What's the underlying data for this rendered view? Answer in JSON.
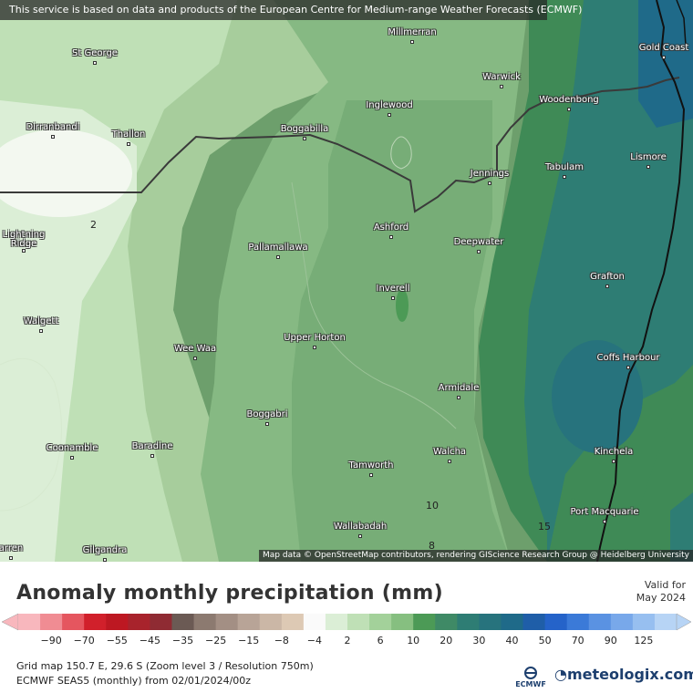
{
  "banner": "This service is based on data and products of the European Centre for Medium-range Weather Forecasts (ECMWF)",
  "attribution": "Map data © OpenStreetMap contributors, rendering GIScience Research Group @ Heidelberg University",
  "cities": [
    {
      "name": "Millmerran"
    },
    {
      "name": "St George"
    },
    {
      "name": "Warwick"
    },
    {
      "name": "Gold Coast"
    },
    {
      "name": "Inglewood"
    },
    {
      "name": "Woodenbong"
    },
    {
      "name": "Dirranbandi"
    },
    {
      "name": "Thallon"
    },
    {
      "name": "Boggabilla"
    },
    {
      "name": "Jennings"
    },
    {
      "name": "Tabulam"
    },
    {
      "name": "Lismore"
    },
    {
      "name": "Lightning Ridge"
    },
    {
      "name": "Ashford"
    },
    {
      "name": "Deepwater"
    },
    {
      "name": "Pallamallawa"
    },
    {
      "name": "Grafton"
    },
    {
      "name": "Inverell"
    },
    {
      "name": "Walgett"
    },
    {
      "name": "Wee Waa"
    },
    {
      "name": "Upper Horton"
    },
    {
      "name": "Coffs Harbour"
    },
    {
      "name": "Armidale"
    },
    {
      "name": "Boggabri"
    },
    {
      "name": "Coonamble"
    },
    {
      "name": "Baradine"
    },
    {
      "name": "Walcha"
    },
    {
      "name": "Kinchela"
    },
    {
      "name": "Tamworth"
    },
    {
      "name": "Port Macquarie"
    },
    {
      "name": "Wallabadah"
    },
    {
      "name": "arren"
    },
    {
      "name": "Gilgandra"
    }
  ],
  "contour_labels": [
    "2",
    "10",
    "15",
    "8"
  ],
  "legend": {
    "title": "Anomaly monthly precipitation (mm)",
    "valid_line1": "Valid for",
    "valid_line2": "May 2024",
    "ticks": [
      "−90",
      "−70",
      "−55",
      "−45",
      "−35",
      "−25",
      "−15",
      "−8",
      "−4",
      "2",
      "6",
      "10",
      "20",
      "30",
      "40",
      "50",
      "70",
      "90",
      "125"
    ],
    "colors": [
      "#f8b7bd",
      "#f08c93",
      "#e5565f",
      "#d1202b",
      "#bd1822",
      "#a8232c",
      "#8f2b33",
      "#6b5a54",
      "#8c7a70",
      "#a38f84",
      "#b8a497",
      "#cbb7a6",
      "#ddc9b4",
      "#fafafa",
      "#dbeed6",
      "#bfe0b6",
      "#a3d19a",
      "#86bf80",
      "#4c9a56",
      "#3f8a66",
      "#2e7d74",
      "#27737d",
      "#1f6a89",
      "#1f5ea8",
      "#2563c9",
      "#3b7ad8",
      "#5a92e2",
      "#78a8ea",
      "#97bff0",
      "#b7d4f5"
    ],
    "grid_info": "Grid map 150.7 E, 29.6 S (Zoom level 3 / Resolution 750m)",
    "model_info": "ECMWF SEAS5 (monthly) from  02/01/2024/00z",
    "ecmwf_logo": "ECMWF",
    "brand": "meteologix.com"
  }
}
